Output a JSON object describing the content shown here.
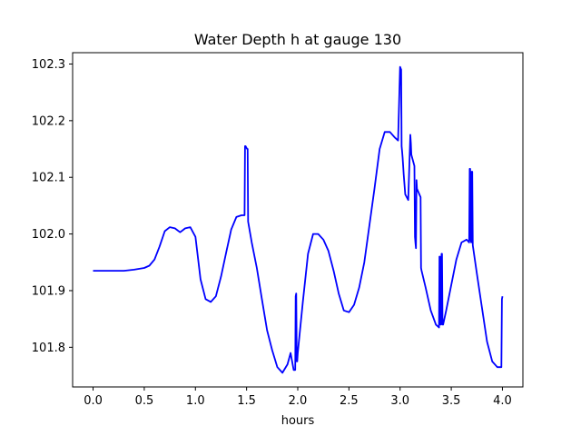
{
  "chart_data": {
    "type": "line",
    "title": "Water Depth h at gauge 130",
    "xlabel": "hours",
    "ylabel": "",
    "xlim": [
      -0.2,
      4.2
    ],
    "ylim": [
      101.73,
      102.32
    ],
    "xticks": [
      0.0,
      0.5,
      1.0,
      1.5,
      2.0,
      2.5,
      3.0,
      3.5,
      4.0
    ],
    "xtick_labels": [
      "0.0",
      "0.5",
      "1.0",
      "1.5",
      "2.0",
      "2.5",
      "3.0",
      "3.5",
      "4.0"
    ],
    "yticks": [
      101.8,
      101.9,
      102.0,
      102.1,
      102.2,
      102.3
    ],
    "ytick_labels": [
      "101.8",
      "101.9",
      "102.0",
      "102.1",
      "102.2",
      "102.3"
    ],
    "grid": false,
    "series": [
      {
        "color": "#0000ff",
        "x": [
          0.0,
          0.1,
          0.2,
          0.3,
          0.4,
          0.5,
          0.55,
          0.6,
          0.65,
          0.7,
          0.75,
          0.8,
          0.85,
          0.9,
          0.95,
          1.0,
          1.05,
          1.1,
          1.15,
          1.2,
          1.25,
          1.3,
          1.35,
          1.4,
          1.45,
          1.48,
          1.485,
          1.49,
          1.505,
          1.51,
          1.515,
          1.55,
          1.6,
          1.65,
          1.7,
          1.75,
          1.8,
          1.85,
          1.9,
          1.93,
          1.96,
          1.975,
          1.98,
          1.985,
          1.99,
          1.995,
          2.0,
          2.05,
          2.1,
          2.15,
          2.2,
          2.25,
          2.3,
          2.35,
          2.4,
          2.45,
          2.5,
          2.55,
          2.6,
          2.65,
          2.7,
          2.75,
          2.8,
          2.85,
          2.9,
          2.95,
          2.98,
          3.0,
          3.01,
          3.015,
          3.02,
          3.025,
          3.03,
          3.035,
          3.05,
          3.08,
          3.1,
          3.105,
          3.11,
          3.14,
          3.145,
          3.15,
          3.155,
          3.16,
          3.165,
          3.2,
          3.205,
          3.21,
          3.25,
          3.3,
          3.35,
          3.38,
          3.385,
          3.39,
          3.395,
          3.4,
          3.405,
          3.41,
          3.415,
          3.42,
          3.45,
          3.5,
          3.55,
          3.6,
          3.65,
          3.675,
          3.68,
          3.685,
          3.69,
          3.695,
          3.7,
          3.705,
          3.71,
          3.75,
          3.8,
          3.85,
          3.9,
          3.95,
          3.985,
          3.99,
          3.995,
          4.0
        ],
        "y": [
          101.935,
          101.935,
          101.935,
          101.935,
          101.937,
          101.94,
          101.944,
          101.955,
          101.978,
          102.005,
          102.012,
          102.01,
          102.003,
          102.01,
          102.012,
          101.995,
          101.92,
          101.885,
          101.88,
          101.89,
          101.925,
          101.967,
          102.008,
          102.03,
          102.033,
          102.033,
          102.155,
          102.155,
          102.15,
          102.15,
          102.022,
          101.985,
          101.94,
          101.885,
          101.83,
          101.795,
          101.765,
          101.755,
          101.77,
          101.79,
          101.76,
          101.76,
          101.89,
          101.895,
          101.775,
          101.775,
          101.79,
          101.88,
          101.965,
          102.0,
          102.0,
          101.99,
          101.97,
          101.935,
          101.895,
          101.865,
          101.862,
          101.875,
          101.905,
          101.95,
          102.015,
          102.08,
          102.15,
          102.18,
          102.18,
          102.17,
          102.165,
          102.295,
          102.29,
          102.155,
          102.145,
          102.135,
          102.12,
          102.105,
          102.07,
          102.06,
          102.175,
          102.16,
          102.14,
          102.12,
          101.995,
          101.985,
          101.975,
          102.095,
          102.08,
          102.065,
          101.94,
          101.935,
          101.905,
          101.865,
          101.84,
          101.835,
          101.96,
          101.96,
          101.84,
          101.84,
          101.965,
          101.965,
          101.84,
          101.84,
          101.865,
          101.91,
          101.955,
          101.985,
          101.99,
          101.985,
          102.115,
          102.115,
          101.99,
          101.985,
          102.11,
          102.11,
          101.98,
          101.93,
          101.87,
          101.81,
          101.775,
          101.765,
          101.765,
          101.765,
          101.885,
          101.89
        ]
      }
    ]
  }
}
